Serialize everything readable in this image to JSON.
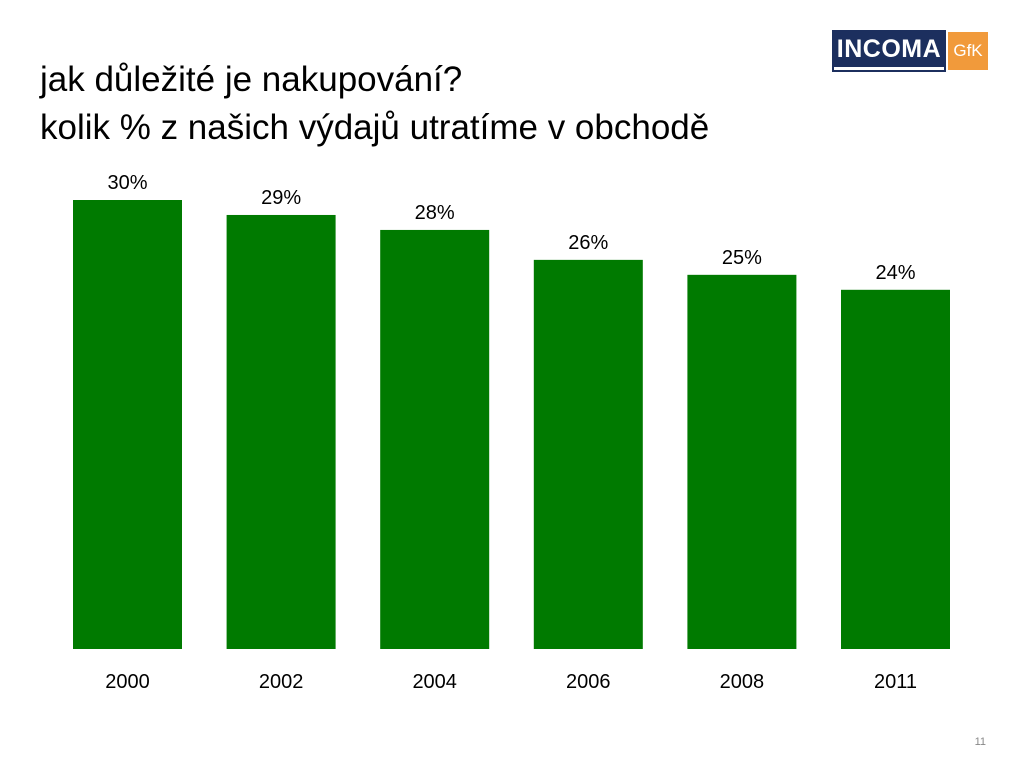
{
  "title": {
    "line1": "jak důležité je nakupování?",
    "line2": "kolik % z našich výdajů utratíme v obchodě"
  },
  "logo": {
    "primary": "INCOMA",
    "secondary": "GfK",
    "primary_color": "#1c2f5e",
    "secondary_color": "#f19a3b"
  },
  "page_number": "11",
  "chart_data": {
    "type": "bar",
    "title": "",
    "xlabel": "",
    "ylabel": "",
    "categories": [
      "2000",
      "2002",
      "2004",
      "2006",
      "2008",
      "2011"
    ],
    "values": [
      30,
      29,
      28,
      26,
      25,
      24
    ],
    "data_labels": [
      "30%",
      "29%",
      "28%",
      "26%",
      "25%",
      "24%"
    ],
    "ylim": [
      0,
      30
    ],
    "bar_color": "#007a00",
    "grid": false,
    "legend": "none"
  }
}
